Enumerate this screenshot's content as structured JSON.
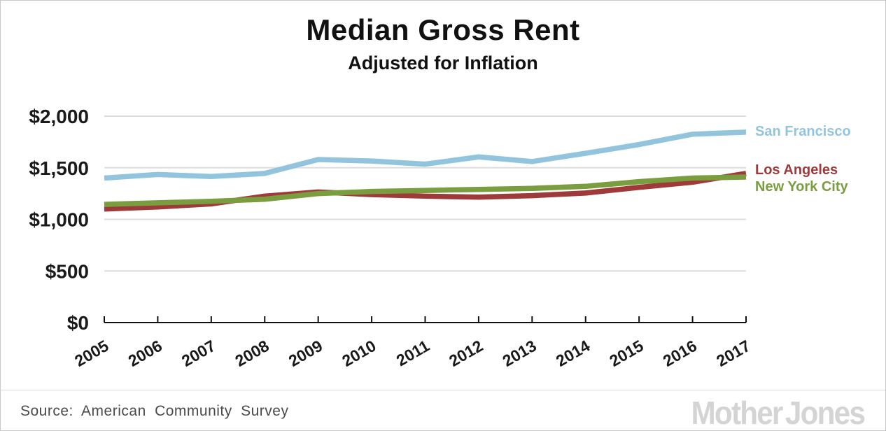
{
  "header": {
    "title": "Median Gross Rent",
    "subtitle": "Adjusted for Inflation"
  },
  "chart_data": {
    "type": "line",
    "title": "Median Gross Rent",
    "subtitle": "Adjusted for Inflation",
    "x": [
      2005,
      2006,
      2007,
      2008,
      2009,
      2010,
      2011,
      2012,
      2013,
      2014,
      2015,
      2016,
      2017
    ],
    "series": [
      {
        "name": "San Francisco",
        "color": "#92c5dd",
        "values": [
          1400,
          1435,
          1415,
          1445,
          1580,
          1565,
          1535,
          1605,
          1560,
          1640,
          1725,
          1825,
          1845
        ]
      },
      {
        "name": "Los Angeles",
        "color": "#9e3a39",
        "values": [
          1100,
          1120,
          1150,
          1225,
          1265,
          1240,
          1225,
          1215,
          1230,
          1255,
          1310,
          1360,
          1445
        ]
      },
      {
        "name": "New York City",
        "color": "#7a9d3f",
        "values": [
          1145,
          1160,
          1175,
          1195,
          1250,
          1270,
          1280,
          1290,
          1300,
          1320,
          1365,
          1400,
          1410
        ]
      }
    ],
    "ylim": [
      0,
      2000
    ],
    "y_ticks": [
      {
        "value": 2000,
        "label": "$2,000"
      },
      {
        "value": 1500,
        "label": "$1,500"
      },
      {
        "value": 1000,
        "label": "$1,000"
      },
      {
        "value": 500,
        "label": "$500"
      },
      {
        "value": 0,
        "label": "$0"
      }
    ],
    "grid": "horizontal-light-gray",
    "legend_position": "right of line ends",
    "colors": {
      "gridline": "#dddddd",
      "axis": "#111111"
    }
  },
  "footer": {
    "source": "Source: American Community Survey",
    "logo": "Mother Jones"
  }
}
